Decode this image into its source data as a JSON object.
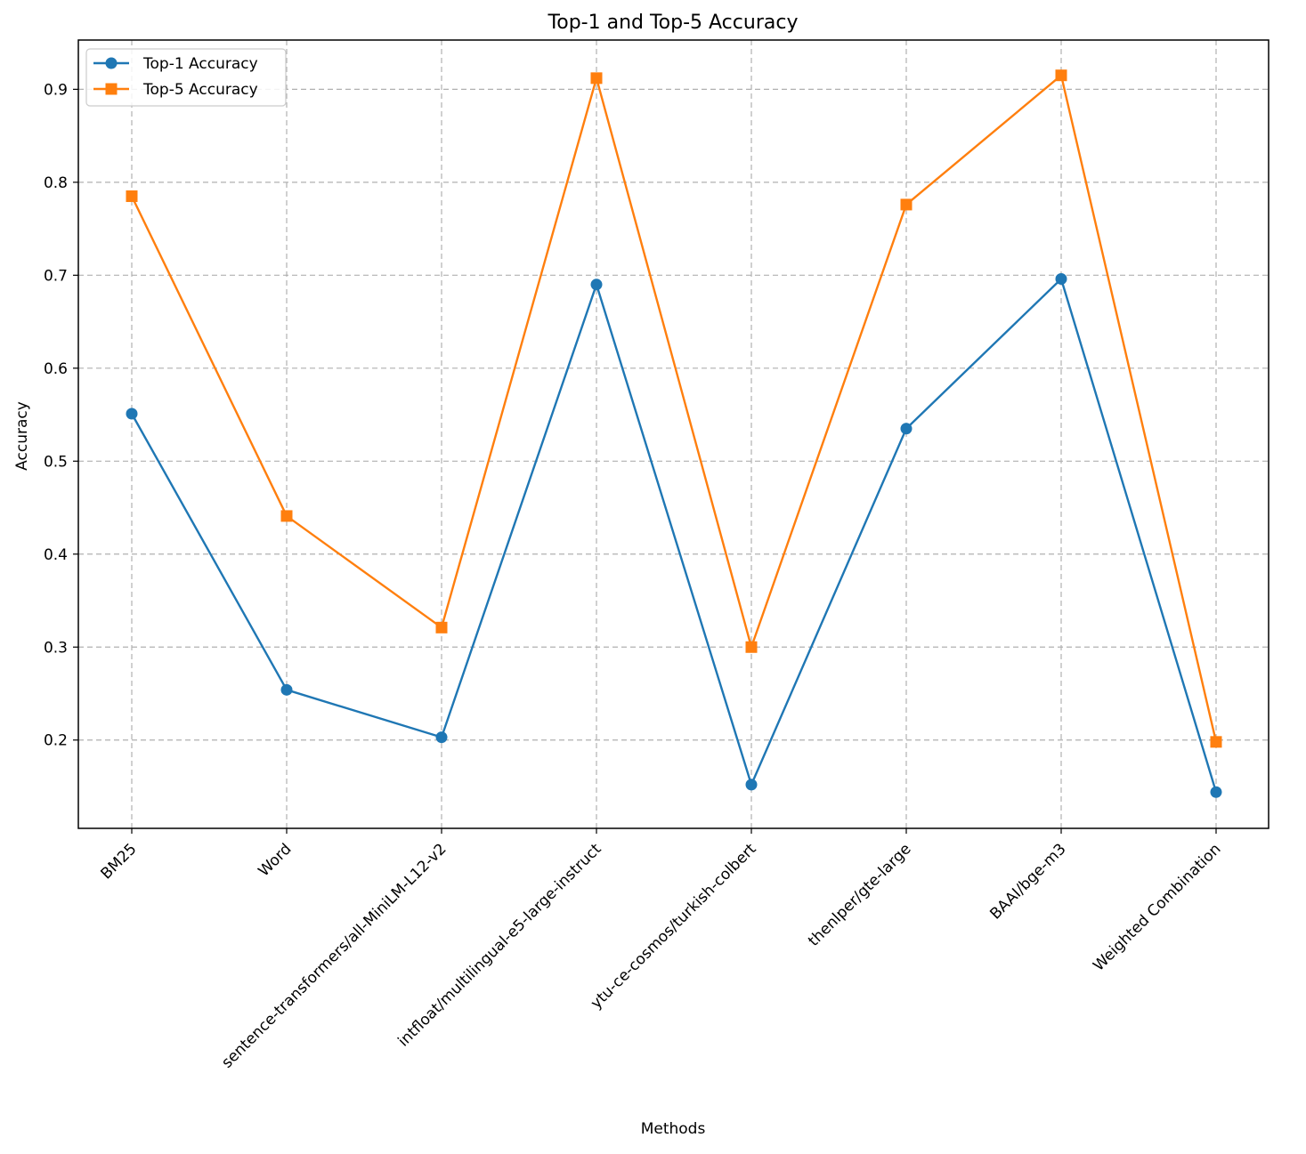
{
  "chart_data": {
    "type": "line",
    "title": "Top-1 and Top-5 Accuracy",
    "xlabel": "Methods",
    "ylabel": "Accuracy",
    "categories": [
      "BM25",
      "Word",
      "sentence-transformers/all-MiniLM-L12-v2",
      "intfloat/multilingual-e5-large-instruct",
      "ytu-ce-cosmos/turkish-colbert",
      "thenlper/gte-large",
      "BAAI/bge-m3",
      "Weighted Combination"
    ],
    "series": [
      {
        "name": "Top-1 Accuracy",
        "color": "#1f77b4",
        "marker": "circle",
        "values": [
          0.551,
          0.254,
          0.203,
          0.69,
          0.152,
          0.535,
          0.696,
          0.144
        ]
      },
      {
        "name": "Top-5 Accuracy",
        "color": "#ff7f0e",
        "marker": "square",
        "values": [
          0.785,
          0.441,
          0.321,
          0.912,
          0.3,
          0.776,
          0.915,
          0.198
        ]
      }
    ],
    "ylim": [
      0.105,
      0.953
    ],
    "yticks": [
      "0.2",
      "0.3",
      "0.4",
      "0.5",
      "0.6",
      "0.7",
      "0.8",
      "0.9"
    ],
    "grid": true,
    "legend_position": "top-left"
  }
}
